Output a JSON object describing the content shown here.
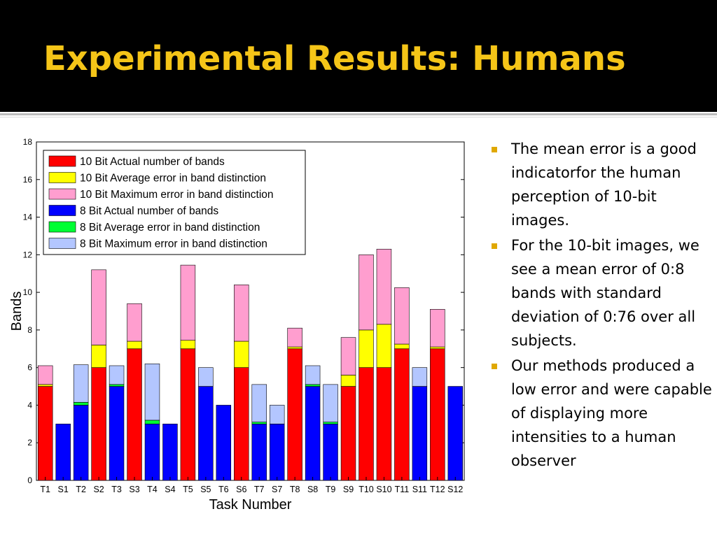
{
  "slide": {
    "title": "Experimental Results: Humans",
    "bullet_marker_color": "#e0a800",
    "bullets": [
      "The mean error is a good indicatorfor the human perception of 10-bit images.",
      "For the 10-bit images, we see a mean error of 0:8 bands with standard deviation of 0:76 over all subjects.",
      "Our methods produced a low error and were capable of displaying more intensities to a human observer"
    ]
  },
  "chart_data": {
    "type": "bar",
    "stacked": true,
    "title": "",
    "xlabel": "Task Number",
    "ylabel": "Bands",
    "ylim": [
      0,
      18
    ],
    "yticks": [
      0,
      2,
      4,
      6,
      8,
      10,
      12,
      14,
      16,
      18
    ],
    "grid": false,
    "legend_position": "top-left",
    "categories": [
      "T1",
      "S1",
      "T2",
      "S2",
      "T3",
      "S3",
      "T4",
      "S4",
      "T5",
      "S5",
      "T6",
      "S6",
      "T7",
      "S7",
      "T8",
      "S8",
      "T9",
      "S9",
      "T10",
      "S10",
      "T11",
      "S11",
      "T12",
      "S12"
    ],
    "series": [
      {
        "name": "10 Bit Actual number of bands",
        "color": "#ff0000",
        "values": [
          5,
          0,
          0,
          6,
          0,
          7,
          0,
          0,
          7,
          0,
          0,
          6,
          0,
          0,
          7,
          0,
          0,
          5,
          6,
          6,
          7,
          0,
          7,
          0
        ]
      },
      {
        "name": "10 Bit Average error in band distinction",
        "color": "#ffff00",
        "values": [
          0.1,
          0,
          0,
          1.2,
          0,
          0.4,
          0,
          0,
          0.45,
          0,
          0,
          1.4,
          0,
          0,
          0.1,
          0,
          0,
          0.6,
          2,
          2.3,
          0.25,
          0,
          0.1,
          0
        ]
      },
      {
        "name": "10 Bit Maximum error in band distinction",
        "color": "#ff9ecf",
        "values": [
          1,
          0,
          0,
          4,
          0,
          2,
          0,
          0,
          4,
          0,
          0,
          3,
          0,
          0,
          1,
          0,
          0,
          2,
          4,
          4,
          3,
          0,
          2,
          0
        ]
      },
      {
        "name": "8 Bit Actual number of bands",
        "color": "#0000ff",
        "values": [
          0,
          3,
          4,
          0,
          5,
          0,
          3,
          3,
          0,
          5,
          4,
          0,
          3,
          3,
          0,
          5,
          3,
          0,
          0,
          0,
          0,
          5,
          0,
          5
        ]
      },
      {
        "name": "8 Bit Average error in band distinction",
        "color": "#00ff33",
        "values": [
          0,
          0,
          0.15,
          0,
          0.1,
          0,
          0.2,
          0,
          0,
          0,
          0,
          0,
          0.1,
          0,
          0,
          0.1,
          0.1,
          0,
          0,
          0,
          0,
          0,
          0,
          0
        ]
      },
      {
        "name": "8 Bit Maximum error in band distinction",
        "color": "#b3c6ff",
        "values": [
          0,
          0,
          2,
          0,
          1,
          0,
          3,
          0,
          0,
          1,
          0,
          0,
          2,
          1,
          0,
          1,
          2,
          0,
          0,
          0,
          0,
          1,
          0,
          0
        ]
      }
    ]
  }
}
